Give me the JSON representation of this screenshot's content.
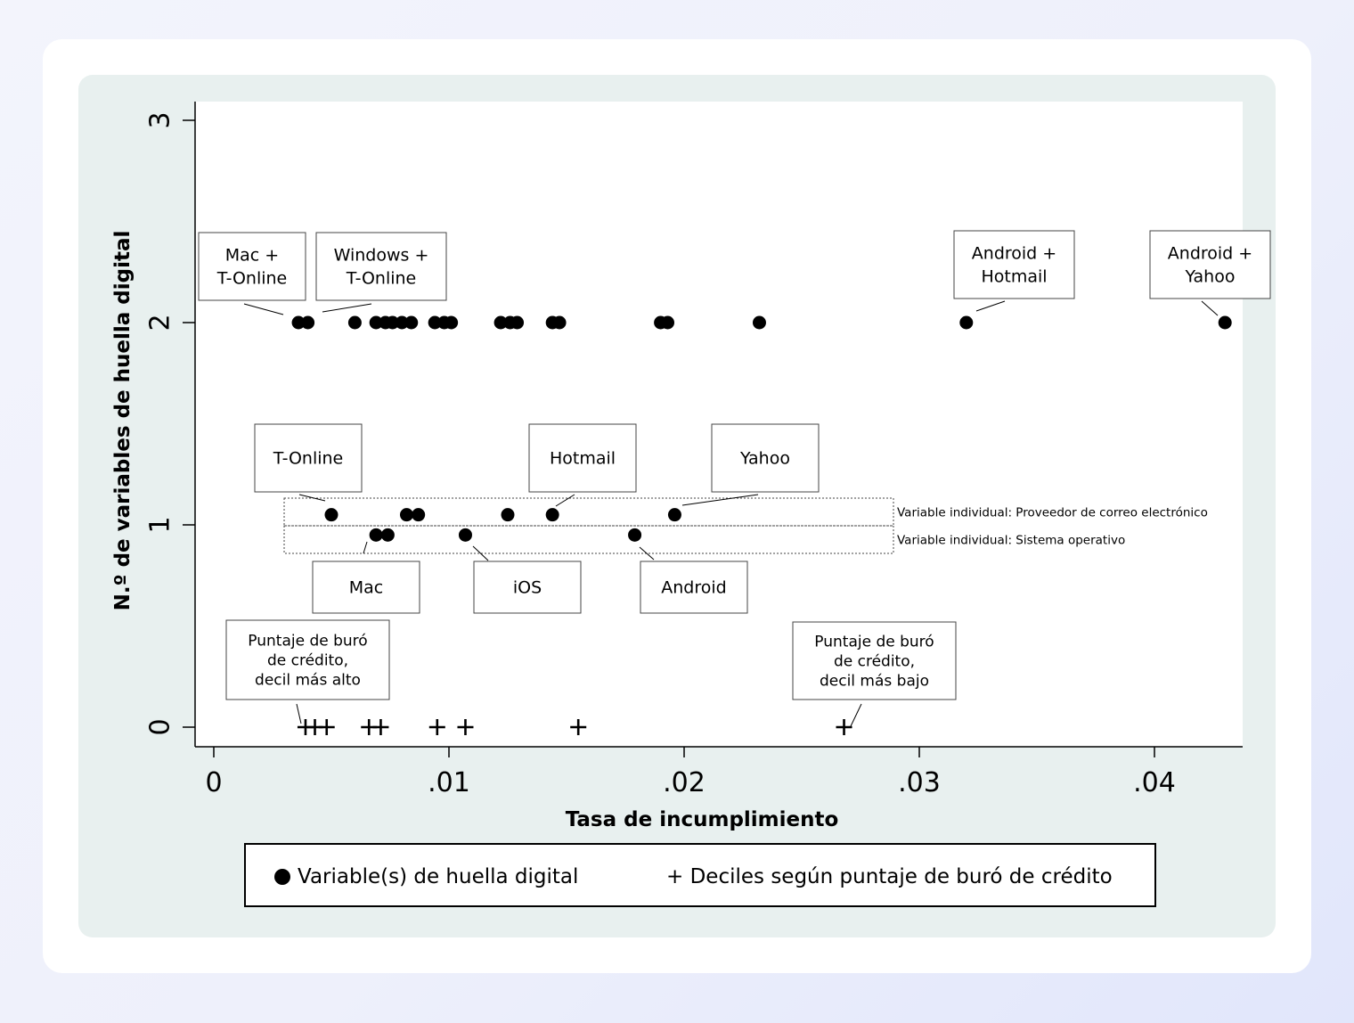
{
  "chart_data": {
    "type": "scatter",
    "xlabel": "Tasa de incumplimiento",
    "ylabel": "N.º de variables de huella digital",
    "xlim": [
      0,
      0.044
    ],
    "ylim": [
      0,
      3
    ],
    "x_ticks": [
      {
        "value": 0,
        "label": "0"
      },
      {
        "value": 0.01,
        "label": ".01"
      },
      {
        "value": 0.02,
        "label": ".02"
      },
      {
        "value": 0.03,
        "label": ".03"
      },
      {
        "value": 0.04,
        "label": ".04"
      }
    ],
    "y_ticks": [
      {
        "value": 0,
        "label": "0"
      },
      {
        "value": 1,
        "label": "1"
      },
      {
        "value": 2,
        "label": "2"
      },
      {
        "value": 3,
        "label": "3"
      }
    ],
    "grid": false,
    "legend_position": "bottom",
    "series": [
      {
        "name": "Variable(s) de huella digital",
        "marker": "dot",
        "points": [
          {
            "x": 0.0036,
            "y": 2
          },
          {
            "x": 0.004,
            "y": 2
          },
          {
            "x": 0.006,
            "y": 2
          },
          {
            "x": 0.0069,
            "y": 2
          },
          {
            "x": 0.0073,
            "y": 2
          },
          {
            "x": 0.0076,
            "y": 2
          },
          {
            "x": 0.008,
            "y": 2
          },
          {
            "x": 0.0084,
            "y": 2
          },
          {
            "x": 0.0094,
            "y": 2
          },
          {
            "x": 0.0098,
            "y": 2
          },
          {
            "x": 0.0101,
            "y": 2
          },
          {
            "x": 0.0122,
            "y": 2
          },
          {
            "x": 0.0126,
            "y": 2
          },
          {
            "x": 0.0129,
            "y": 2
          },
          {
            "x": 0.0144,
            "y": 2
          },
          {
            "x": 0.0147,
            "y": 2
          },
          {
            "x": 0.019,
            "y": 2
          },
          {
            "x": 0.0193,
            "y": 2
          },
          {
            "x": 0.0232,
            "y": 2
          },
          {
            "x": 0.032,
            "y": 2
          },
          {
            "x": 0.043,
            "y": 2
          },
          {
            "x": 0.005,
            "y": 1.05
          },
          {
            "x": 0.0082,
            "y": 1.05
          },
          {
            "x": 0.0087,
            "y": 1.05
          },
          {
            "x": 0.0125,
            "y": 1.05
          },
          {
            "x": 0.0144,
            "y": 1.05
          },
          {
            "x": 0.0196,
            "y": 1.05
          },
          {
            "x": 0.0069,
            "y": 0.95
          },
          {
            "x": 0.0074,
            "y": 0.95
          },
          {
            "x": 0.0107,
            "y": 0.95
          },
          {
            "x": 0.0179,
            "y": 0.95
          }
        ]
      },
      {
        "name": "Deciles según puntaje de buró de crédito",
        "marker": "plus",
        "points": [
          {
            "x": 0.0039,
            "y": 0
          },
          {
            "x": 0.0043,
            "y": 0
          },
          {
            "x": 0.0048,
            "y": 0
          },
          {
            "x": 0.0066,
            "y": 0
          },
          {
            "x": 0.0071,
            "y": 0
          },
          {
            "x": 0.0095,
            "y": 0
          },
          {
            "x": 0.0107,
            "y": 0
          },
          {
            "x": 0.0155,
            "y": 0
          },
          {
            "x": 0.0268,
            "y": 0
          }
        ]
      }
    ],
    "annotations": [
      {
        "lines": [
          "Mac +",
          "T-Online"
        ],
        "point": {
          "x": 0.0036,
          "y": 2
        },
        "side": "above"
      },
      {
        "lines": [
          "Windows +",
          "T-Online"
        ],
        "point": {
          "x": 0.004,
          "y": 2
        },
        "side": "above"
      },
      {
        "lines": [
          "Android +",
          "Hotmail"
        ],
        "point": {
          "x": 0.032,
          "y": 2
        },
        "side": "above"
      },
      {
        "lines": [
          "Android +",
          "Yahoo"
        ],
        "point": {
          "x": 0.043,
          "y": 2
        },
        "side": "above"
      },
      {
        "lines": [
          "T-Online"
        ],
        "point": {
          "x": 0.005,
          "y": 1.05
        },
        "side": "above"
      },
      {
        "lines": [
          "Hotmail"
        ],
        "point": {
          "x": 0.0144,
          "y": 1.05
        },
        "side": "above"
      },
      {
        "lines": [
          "Yahoo"
        ],
        "point": {
          "x": 0.0196,
          "y": 1.05
        },
        "side": "above"
      },
      {
        "lines": [
          "Mac"
        ],
        "point": {
          "x": 0.0069,
          "y": 0.95
        },
        "side": "below"
      },
      {
        "lines": [
          "iOS"
        ],
        "point": {
          "x": 0.0107,
          "y": 0.95
        },
        "side": "below"
      },
      {
        "lines": [
          "Android"
        ],
        "point": {
          "x": 0.0179,
          "y": 0.95
        },
        "side": "below"
      },
      {
        "lines": [
          "Puntaje de buró",
          "de crédito,",
          "decil más alto"
        ],
        "point": {
          "x": 0.0039,
          "y": 0
        },
        "side": "above"
      },
      {
        "lines": [
          "Puntaje de buró",
          "de crédito,",
          "decil más bajo"
        ],
        "point": {
          "x": 0.0268,
          "y": 0
        },
        "side": "above"
      }
    ],
    "group_labels": [
      {
        "label": "Variable individual: Proveedor de correo electrónico",
        "y": 1.05
      },
      {
        "label": "Variable individual: Sistema operativo",
        "y": 0.95
      }
    ]
  },
  "legend": {
    "dot_label": "Variable(s) de huella digital",
    "plus_label": "+ Deciles según puntaje de buró de crédito"
  }
}
